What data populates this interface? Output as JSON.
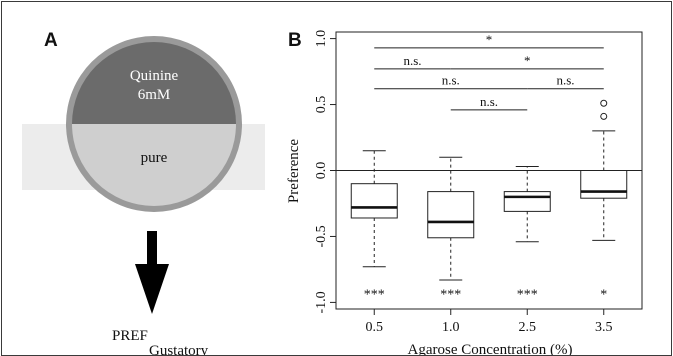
{
  "panel_a": {
    "letter": "A",
    "top_label_line1": "Quinine",
    "top_label_line2": "6mM",
    "bottom_label": "pure",
    "result_label_main": "PREF",
    "result_label_sub": "Gustatory",
    "colors": {
      "top_half": "#6b6b6b",
      "bottom_half": "#cfcfcf",
      "rim": "#9a9a9a",
      "band": "#ececec",
      "arrow": "#000000"
    }
  },
  "panel_b": {
    "letter": "B",
    "chart_data": {
      "type": "box",
      "xlabel": "Agarose Concentration (%)",
      "ylabel": "Preference",
      "ylim": [
        -1.05,
        1.05
      ],
      "yticks": [
        "-1.0",
        "-0.5",
        "0.0",
        "0.5",
        "1.0"
      ],
      "ytick_values": [
        -1.0,
        -0.5,
        0.0,
        0.5,
        1.0
      ],
      "reference_line": 0.0,
      "categories": [
        "0.5",
        "1.0",
        "2.5",
        "3.5"
      ],
      "boxes": [
        {
          "category": "0.5",
          "whisker_low": -0.73,
          "q1": -0.36,
          "median": -0.28,
          "q3": -0.1,
          "whisker_high": 0.15,
          "outliers": []
        },
        {
          "category": "1.0",
          "whisker_low": -0.83,
          "q1": -0.51,
          "median": -0.39,
          "q3": -0.16,
          "whisker_high": 0.1,
          "outliers": []
        },
        {
          "category": "2.5",
          "whisker_low": -0.54,
          "q1": -0.31,
          "median": -0.2,
          "q3": -0.16,
          "whisker_high": 0.03,
          "outliers": []
        },
        {
          "category": "3.5",
          "whisker_low": -0.53,
          "q1": -0.21,
          "median": -0.16,
          "q3": 0.0,
          "whisker_high": 0.3,
          "outliers": [
            0.41,
            0.51
          ]
        }
      ],
      "significance_vs_zero": [
        "***",
        "***",
        "***",
        "*"
      ],
      "comparisons": [
        {
          "from": 0,
          "to": 3,
          "y": 0.93,
          "label": "*"
        },
        {
          "from": 0,
          "to": 1,
          "y": 0.77,
          "label": "n.s."
        },
        {
          "from": 1,
          "to": 3,
          "y": 0.77,
          "label": "*"
        },
        {
          "from": 0,
          "to": 2,
          "y": 0.62,
          "label": "n.s."
        },
        {
          "from": 2,
          "to": 3,
          "y": 0.62,
          "label": "n.s."
        },
        {
          "from": 1,
          "to": 2,
          "y": 0.46,
          "label": "n.s."
        }
      ]
    }
  }
}
